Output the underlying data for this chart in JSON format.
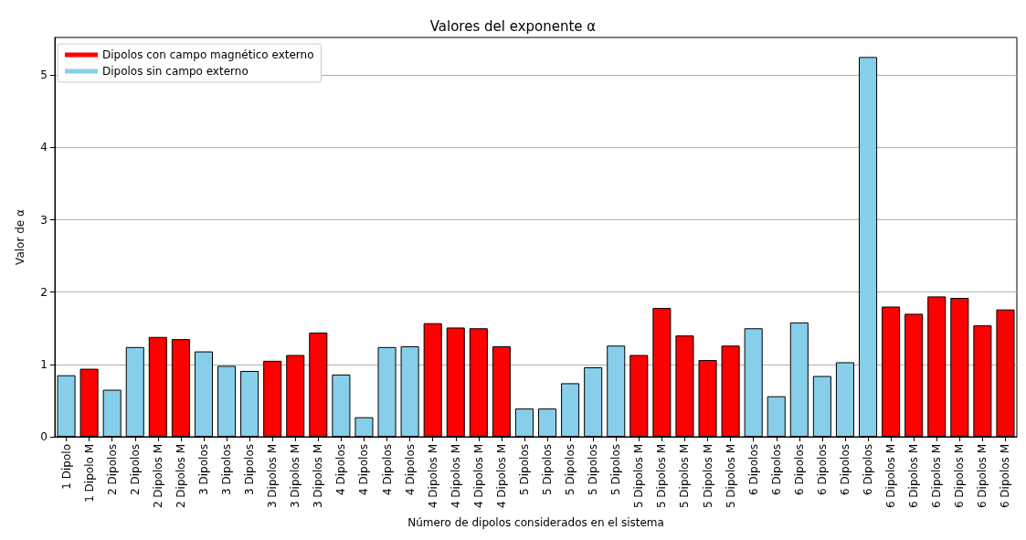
{
  "chart_data": {
    "type": "bar",
    "title": "Valores del exponente α",
    "xlabel": "Número de dipolos considerados en el sistema",
    "ylabel": "Valor de α",
    "categories": [
      "1 Dipolo",
      "1 Dipolo M",
      "2 Dipolos",
      "2 Dipolos",
      "2 Dipolos M",
      "2 Dipolos M",
      "3 Dipolos",
      "3 Dipolos",
      "3 Dipolos",
      "3 Dipolos M",
      "3 Dipolos M",
      "3 Dipolos M",
      "4 Dipolos",
      "4 Dipolos",
      "4 Dipolos",
      "4 Dipolos",
      "4 Dipolos M",
      "4 Dipolos M",
      "4 Dipolos M",
      "4 Dipolos M",
      "5 Dipolos",
      "5 Dipolos",
      "5 Dipolos",
      "5 Dipolos",
      "5 Dipolos",
      "5 Dipolos M",
      "5 Dipolos M",
      "5 Dipolos M",
      "5 Dipolos M",
      "5 Dipolos M",
      "6 Dipolos",
      "6 Dipolos",
      "6 Dipolos",
      "6 Dipolos",
      "6 Dipolos",
      "6 Dipolos",
      "6 Dipolos M",
      "6 Dipolos M",
      "6 Dipolos M",
      "6 Dipolos M",
      "6 Dipolos M",
      "6 Dipolos M"
    ],
    "series": [
      {
        "name": "Dipolos con campo magnético externo",
        "color": "#ff0000",
        "values": [
          null,
          0.94,
          null,
          null,
          1.38,
          1.35,
          null,
          null,
          null,
          1.05,
          1.13,
          1.44,
          null,
          null,
          null,
          null,
          1.57,
          1.51,
          1.5,
          1.25,
          null,
          null,
          null,
          null,
          null,
          1.13,
          1.78,
          1.4,
          1.06,
          1.26,
          null,
          null,
          null,
          null,
          null,
          null,
          1.8,
          1.7,
          1.94,
          1.92,
          1.54,
          1.76
        ]
      },
      {
        "name": "Dipolos sin campo externo",
        "color": "#87ceeb",
        "values": [
          0.85,
          null,
          0.65,
          1.24,
          null,
          null,
          1.18,
          0.98,
          0.91,
          null,
          null,
          null,
          0.86,
          0.27,
          1.24,
          1.25,
          null,
          null,
          null,
          null,
          0.39,
          0.39,
          0.74,
          0.96,
          1.26,
          null,
          null,
          null,
          null,
          null,
          1.5,
          0.56,
          1.58,
          0.84,
          1.03,
          5.25,
          null,
          null,
          null,
          null,
          null,
          null
        ]
      }
    ],
    "ylim": [
      0,
      5.52
    ],
    "yticks": [
      0,
      1,
      2,
      3,
      4,
      5
    ],
    "grid": "y",
    "legend": "top left"
  }
}
